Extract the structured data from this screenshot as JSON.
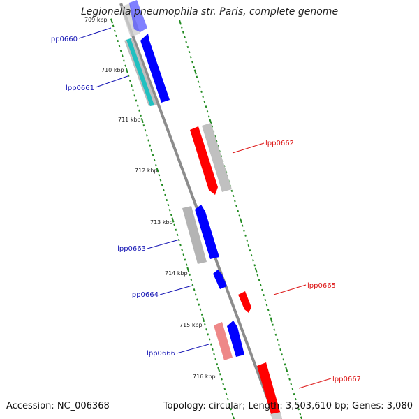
{
  "header": {
    "title": "Legionella pneumophila str. Paris, complete genome"
  },
  "footer": {
    "accession": "Accession: NC_006368",
    "summary": "Topology: circular; Length: 3,503,610 bp; Genes: 3,080"
  },
  "colors": {
    "forward": "#0000ff",
    "reverse": "#ff0000",
    "forward_label": "#1414b4",
    "reverse_label": "#dc1414",
    "backbone": "#8c8c8c",
    "tick": "#228b22",
    "cds": "#bebebe",
    "trna": "#20c0c0",
    "reverse_pseudo": "#ee8888"
  },
  "ruler": {
    "unit": "kbp",
    "labels": [
      {
        "kbp": 709,
        "text": "709 kbp"
      },
      {
        "kbp": 710,
        "text": "710 kbp"
      },
      {
        "kbp": 711,
        "text": "711 kbp"
      },
      {
        "kbp": 712,
        "text": "712 kbp"
      },
      {
        "kbp": 713,
        "text": "713 kbp"
      },
      {
        "kbp": 714,
        "text": "714 kbp"
      },
      {
        "kbp": 715,
        "text": "715 kbp"
      },
      {
        "kbp": 716,
        "text": "716 kbp"
      }
    ]
  },
  "genes": [
    {
      "name": "lpp0660",
      "strand": "forward",
      "label": "lpp0660"
    },
    {
      "name": "lpp0661",
      "strand": "forward",
      "label": "lpp0661"
    },
    {
      "name": "lpp0662",
      "strand": "reverse",
      "label": "lpp0662"
    },
    {
      "name": "lpp0663",
      "strand": "forward",
      "label": "lpp0663"
    },
    {
      "name": "lpp0664",
      "strand": "forward",
      "label": "lpp0664"
    },
    {
      "name": "lpp0665",
      "strand": "reverse",
      "label": "lpp0665"
    },
    {
      "name": "lpp0666",
      "strand": "forward",
      "label": "lpp0666"
    },
    {
      "name": "lpp0667",
      "strand": "reverse",
      "label": "lpp0667"
    }
  ]
}
